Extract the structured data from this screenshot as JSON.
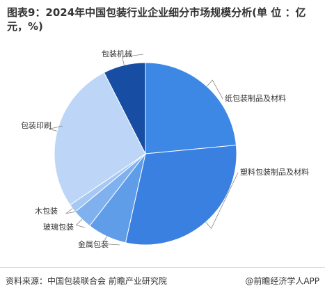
{
  "chart_data": {
    "type": "pie",
    "title": "图表9：2024年中国包装行业企业细分市场规模分析(单 位 ：亿元，%)",
    "categories": [
      "纸包装制品及材料",
      "塑料包装制品及材料",
      "金属包装",
      "玻璃包装",
      "木包装",
      "包装印刷",
      "包装机械"
    ],
    "values": [
      23.5,
      30,
      7,
      3.5,
      1.5,
      27,
      7.5
    ],
    "colors": [
      "#3c88e4",
      "#3a80e0",
      "#5f9de9",
      "#80b1ef",
      "#a6c8f3",
      "#bdd6f7",
      "#174da2"
    ],
    "source": "资料来源：中国包装联合会 前瞻产业研究院",
    "credit": "@前瞻经济学人APP"
  }
}
